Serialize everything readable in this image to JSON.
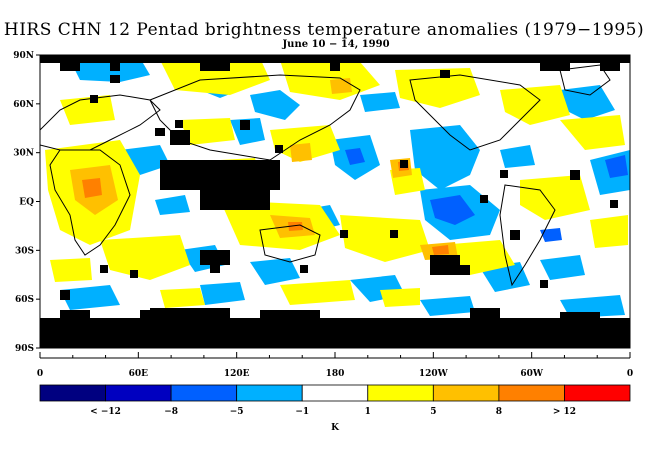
{
  "title": "HIRS CHN 12 Pentad brightness temperature anomalies (1979−1995)",
  "subtitle": "June 10 − 14, 1990",
  "map": {
    "lat_labels": [
      "90N",
      "60N",
      "30N",
      "EQ",
      "30S",
      "60S",
      "90S"
    ],
    "lon_labels": [
      "0",
      "60E",
      "120E",
      "180",
      "120W",
      "60W",
      "0"
    ]
  },
  "colorbar": {
    "colors": [
      "#000080",
      "#0000c0",
      "#0060ff",
      "#00b0ff",
      "#ffffff",
      "#ffff00",
      "#ffc000",
      "#ff8000",
      "#ff0000"
    ],
    "labels": [
      "< −12",
      "−8",
      "−5",
      "−1",
      "1",
      "5",
      "8",
      "> 12"
    ],
    "unit": "K"
  },
  "legend_colors": {
    "missing": "#000000",
    "land_outline": "#000000"
  }
}
